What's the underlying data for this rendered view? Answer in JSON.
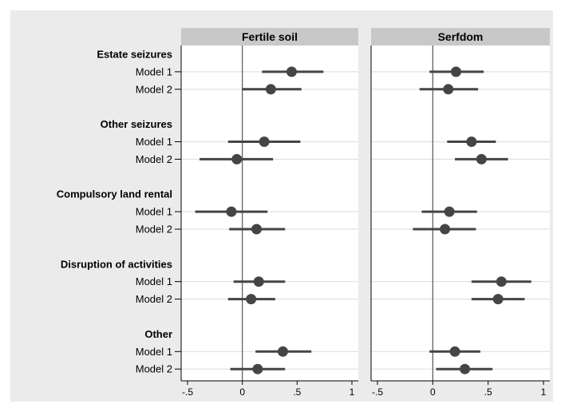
{
  "chart_data": {
    "type": "scatter",
    "subtype": "coefficient-plot",
    "xlim": [
      -0.5,
      1
    ],
    "xticks": [
      -0.5,
      0,
      0.5,
      1
    ],
    "xtick_labels": [
      "-.5",
      "0",
      ".5",
      "1"
    ],
    "reference_line": 0,
    "grid": "horizontal",
    "groups": [
      {
        "label": "Estate seizures",
        "rows": [
          "Model 1",
          "Model 2"
        ]
      },
      {
        "label": "Other seizures",
        "rows": [
          "Model 1",
          "Model 2"
        ]
      },
      {
        "label": "Compulsory land rental",
        "rows": [
          "Model 1",
          "Model 2"
        ]
      },
      {
        "label": "Disruption of activities",
        "rows": [
          "Model 1",
          "Model 2"
        ]
      },
      {
        "label": "Other",
        "rows": [
          "Model 1",
          "Model 2"
        ]
      }
    ],
    "panels": [
      {
        "title": "Fertile soil",
        "points": [
          {
            "group": "Estate seizures",
            "model": "Model 1",
            "estimate": 0.45,
            "ci": [
              0.18,
              0.74
            ]
          },
          {
            "group": "Estate seizures",
            "model": "Model 2",
            "estimate": 0.26,
            "ci": [
              0.0,
              0.54
            ]
          },
          {
            "group": "Other seizures",
            "model": "Model 1",
            "estimate": 0.2,
            "ci": [
              -0.13,
              0.53
            ]
          },
          {
            "group": "Other seizures",
            "model": "Model 2",
            "estimate": -0.05,
            "ci": [
              -0.39,
              0.28
            ]
          },
          {
            "group": "Compulsory land rental",
            "model": "Model 1",
            "estimate": -0.1,
            "ci": [
              -0.43,
              0.23
            ]
          },
          {
            "group": "Compulsory land rental",
            "model": "Model 2",
            "estimate": 0.13,
            "ci": [
              -0.12,
              0.39
            ]
          },
          {
            "group": "Disruption of activities",
            "model": "Model 1",
            "estimate": 0.15,
            "ci": [
              -0.08,
              0.39
            ]
          },
          {
            "group": "Disruption of activities",
            "model": "Model 2",
            "estimate": 0.08,
            "ci": [
              -0.13,
              0.3
            ]
          },
          {
            "group": "Other",
            "model": "Model 1",
            "estimate": 0.37,
            "ci": [
              0.12,
              0.63
            ]
          },
          {
            "group": "Other",
            "model": "Model 2",
            "estimate": 0.14,
            "ci": [
              -0.11,
              0.39
            ]
          }
        ]
      },
      {
        "title": "Serfdom",
        "points": [
          {
            "group": "Estate seizures",
            "model": "Model 1",
            "estimate": 0.21,
            "ci": [
              -0.03,
              0.46
            ]
          },
          {
            "group": "Estate seizures",
            "model": "Model 2",
            "estimate": 0.14,
            "ci": [
              -0.12,
              0.41
            ]
          },
          {
            "group": "Other seizures",
            "model": "Model 1",
            "estimate": 0.35,
            "ci": [
              0.13,
              0.57
            ]
          },
          {
            "group": "Other seizures",
            "model": "Model 2",
            "estimate": 0.44,
            "ci": [
              0.2,
              0.68
            ]
          },
          {
            "group": "Compulsory land rental",
            "model": "Model 1",
            "estimate": 0.15,
            "ci": [
              -0.1,
              0.4
            ]
          },
          {
            "group": "Compulsory land rental",
            "model": "Model 2",
            "estimate": 0.11,
            "ci": [
              -0.18,
              0.39
            ]
          },
          {
            "group": "Disruption of activities",
            "model": "Model 1",
            "estimate": 0.62,
            "ci": [
              0.35,
              0.89
            ]
          },
          {
            "group": "Disruption of activities",
            "model": "Model 2",
            "estimate": 0.59,
            "ci": [
              0.35,
              0.83
            ]
          },
          {
            "group": "Other",
            "model": "Model 1",
            "estimate": 0.2,
            "ci": [
              -0.03,
              0.43
            ]
          },
          {
            "group": "Other",
            "model": "Model 2",
            "estimate": 0.29,
            "ci": [
              0.03,
              0.54
            ]
          }
        ]
      }
    ]
  },
  "colors": {
    "outer_background": "#ebebeb",
    "header": "#c8c8c8",
    "panel": "#ffffff",
    "gridline": "#e0e0e0",
    "marker": "#454545",
    "axis": "#000000"
  }
}
